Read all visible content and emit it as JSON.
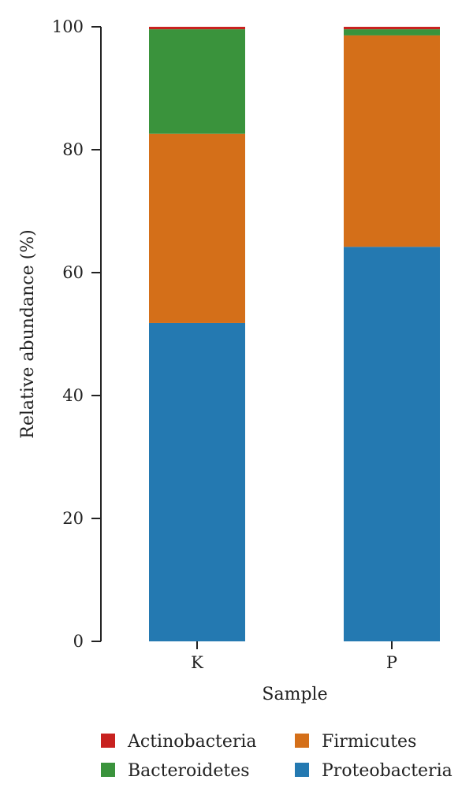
{
  "chart_data": {
    "type": "bar",
    "stacked": true,
    "categories": [
      "K",
      "P"
    ],
    "series": [
      {
        "name": "Proteobacteria",
        "color": "#2479b1",
        "values": [
          51.8,
          64.2
        ]
      },
      {
        "name": "Firmicutes",
        "color": "#d46f19",
        "values": [
          30.8,
          34.4
        ]
      },
      {
        "name": "Bacteroidetes",
        "color": "#3a933c",
        "values": [
          17.0,
          1.0
        ]
      },
      {
        "name": "Actinobacteria",
        "color": "#c8221f",
        "values": [
          0.4,
          0.4
        ]
      }
    ],
    "xlabel": "Sample",
    "ylabel": "Relative abundance (%)",
    "ylim": [
      0,
      100
    ],
    "yticks": [
      0,
      20,
      40,
      60,
      80,
      100
    ],
    "grid": false,
    "legend": {
      "placement": "bottom",
      "order": [
        "Actinobacteria",
        "Firmicutes",
        "Bacteroidetes",
        "Proteobacteria"
      ]
    }
  }
}
